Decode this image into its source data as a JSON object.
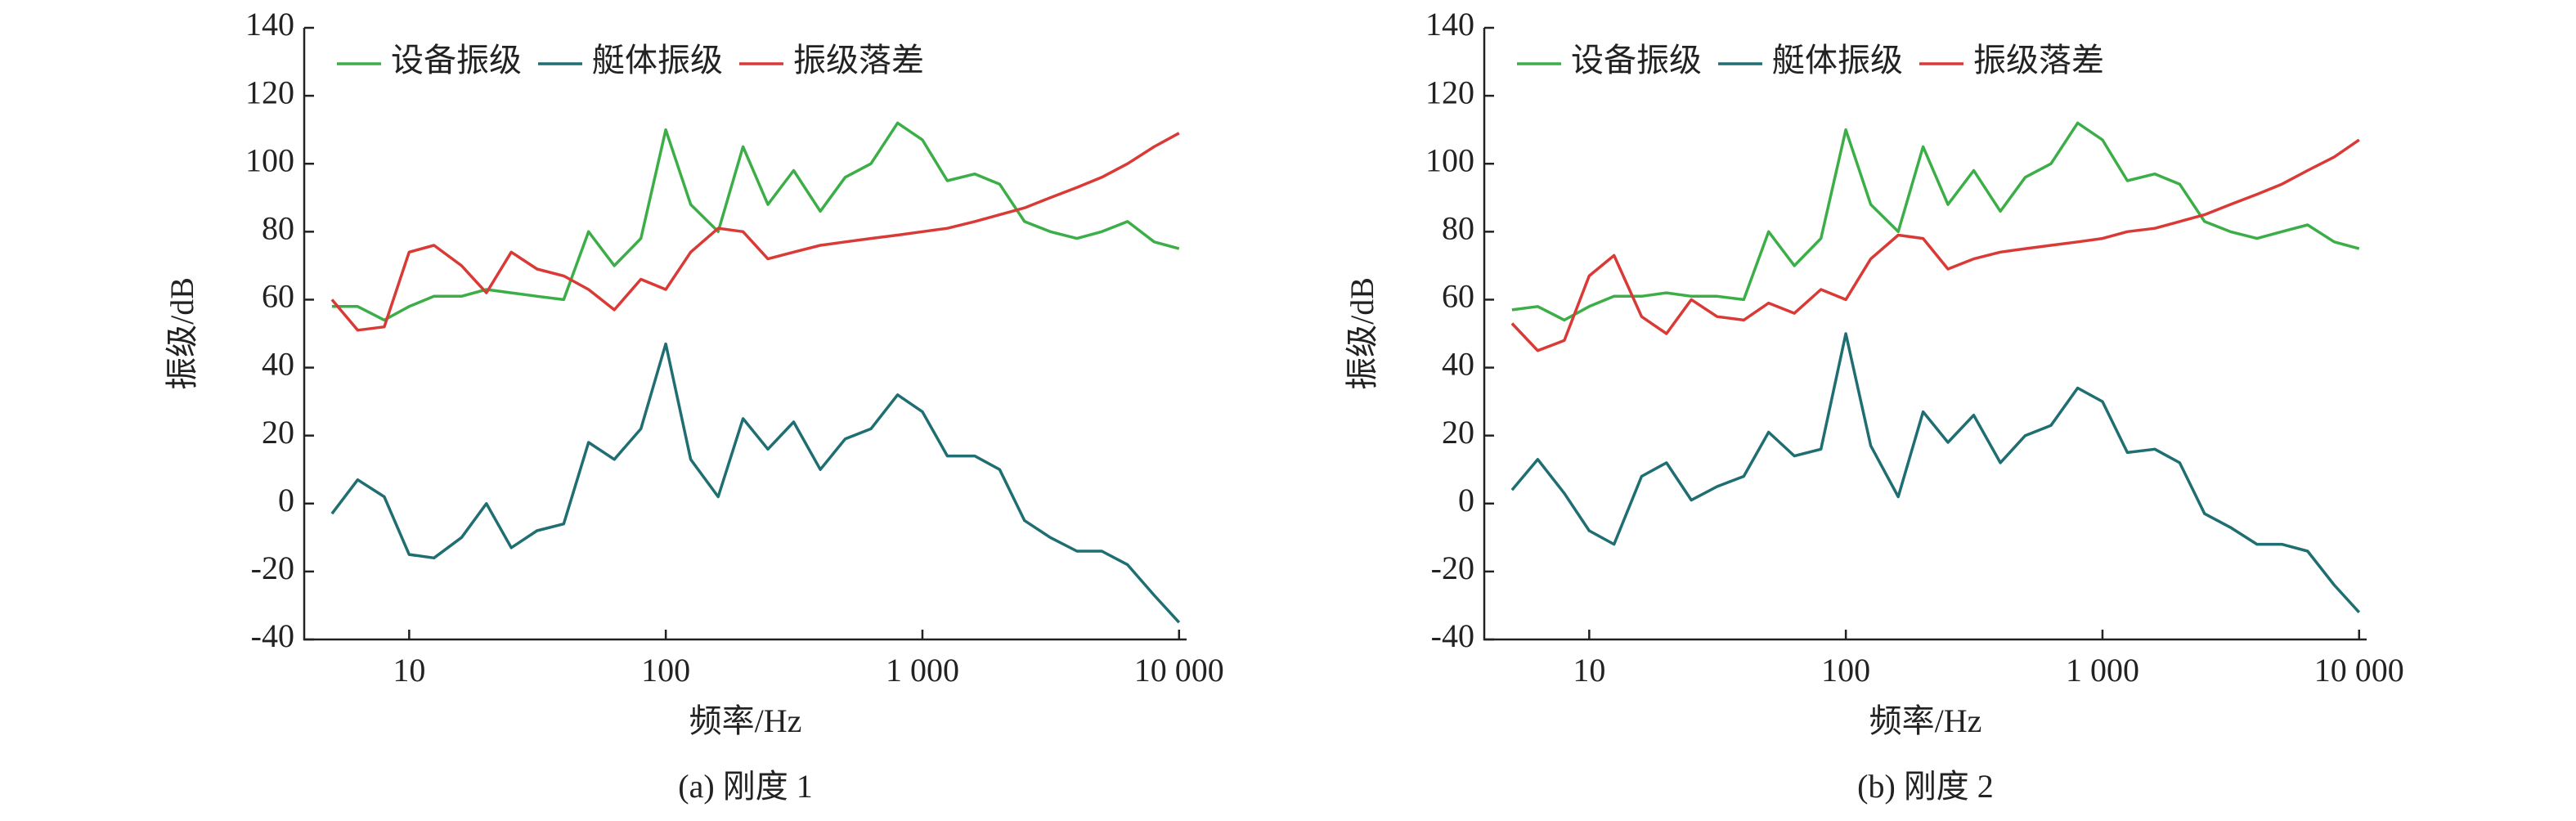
{
  "chart_data": [
    {
      "type": "line",
      "title": "(a) 刚度 1",
      "xlabel": "频率/Hz",
      "ylabel": "振级/dB",
      "xscale": "log",
      "legend": "upper left",
      "x": [
        5,
        6.3,
        8,
        10,
        12.5,
        16,
        20,
        25,
        31.5,
        40,
        50,
        63,
        80,
        100,
        125,
        160,
        200,
        250,
        315,
        400,
        500,
        630,
        800,
        1000,
        1250,
        1600,
        2000,
        2500,
        3150,
        4000,
        5000,
        6300,
        8000,
        10000
      ],
      "series": [
        {
          "name": "设备振级",
          "color": "#3cae48",
          "values": [
            58,
            58,
            54,
            58,
            61,
            61,
            63,
            62,
            61,
            60,
            80,
            70,
            78,
            110,
            88,
            80,
            105,
            88,
            98,
            86,
            96,
            100,
            112,
            107,
            95,
            97,
            94,
            83,
            80,
            78,
            80,
            83,
            77,
            75
          ]
        },
        {
          "name": "艇体振级",
          "color": "#1f6e72",
          "values": [
            -3,
            7,
            2,
            -15,
            -16,
            -10,
            0,
            -13,
            -8,
            -6,
            18,
            13,
            22,
            47,
            13,
            2,
            25,
            16,
            24,
            10,
            19,
            22,
            32,
            27,
            14,
            14,
            10,
            -5,
            -10,
            -14,
            -14,
            -18,
            -27,
            -35
          ]
        },
        {
          "name": "振级落差",
          "color": "#d93a36",
          "values": [
            60,
            51,
            52,
            74,
            76,
            70,
            62,
            74,
            69,
            67,
            63,
            57,
            66,
            63,
            74,
            81,
            80,
            72,
            74,
            76,
            77,
            78,
            79,
            80,
            81,
            83,
            85,
            87,
            90,
            93,
            96,
            100,
            105,
            109
          ]
        }
      ],
      "xlim": [
        3.9,
        10700
      ],
      "xticks": [
        10,
        100,
        {
          "value": 1000,
          "label": "1 000"
        },
        {
          "value": 10000,
          "label": "10 000"
        }
      ],
      "ylim": [
        -40,
        140
      ],
      "yticks": [
        -40,
        -20,
        0,
        20,
        40,
        60,
        80,
        100,
        120,
        140
      ]
    },
    {
      "type": "line",
      "title": "(b) 刚度 2",
      "xlabel": "频率/Hz",
      "ylabel": "振级/dB",
      "xscale": "log",
      "legend": "upper left",
      "x": [
        5,
        6.3,
        8,
        10,
        12.5,
        16,
        20,
        25,
        31.5,
        40,
        50,
        63,
        80,
        100,
        125,
        160,
        200,
        250,
        315,
        400,
        500,
        630,
        800,
        1000,
        1250,
        1600,
        2000,
        2500,
        3150,
        4000,
        5000,
        6300,
        8000,
        10000
      ],
      "series": [
        {
          "name": "设备振级",
          "color": "#3cae48",
          "values": [
            57,
            58,
            54,
            58,
            61,
            61,
            62,
            61,
            61,
            60,
            80,
            70,
            78,
            110,
            88,
            80,
            105,
            88,
            98,
            86,
            96,
            100,
            112,
            107,
            95,
            97,
            94,
            83,
            80,
            78,
            80,
            82,
            77,
            75
          ]
        },
        {
          "name": "艇体振级",
          "color": "#1f6e72",
          "values": [
            4,
            13,
            3,
            -8,
            -12,
            8,
            12,
            1,
            5,
            8,
            21,
            14,
            16,
            50,
            17,
            2,
            27,
            18,
            26,
            12,
            20,
            23,
            34,
            30,
            15,
            16,
            12,
            -3,
            -7,
            -12,
            -12,
            -14,
            -24,
            -32
          ]
        },
        {
          "name": "振级落差",
          "color": "#d93a36",
          "values": [
            53,
            45,
            48,
            67,
            73,
            55,
            50,
            60,
            55,
            54,
            59,
            56,
            63,
            60,
            72,
            79,
            78,
            69,
            72,
            74,
            75,
            76,
            77,
            78,
            80,
            81,
            83,
            85,
            88,
            91,
            94,
            98,
            102,
            107
          ]
        }
      ],
      "xlim": [
        3.9,
        10700
      ],
      "xticks": [
        10,
        100,
        {
          "value": 1000,
          "label": "1 000"
        },
        {
          "value": 10000,
          "label": "10 000"
        }
      ],
      "ylim": [
        -40,
        140
      ],
      "yticks": [
        -40,
        -20,
        0,
        20,
        40,
        60,
        80,
        100,
        120,
        140
      ]
    }
  ]
}
